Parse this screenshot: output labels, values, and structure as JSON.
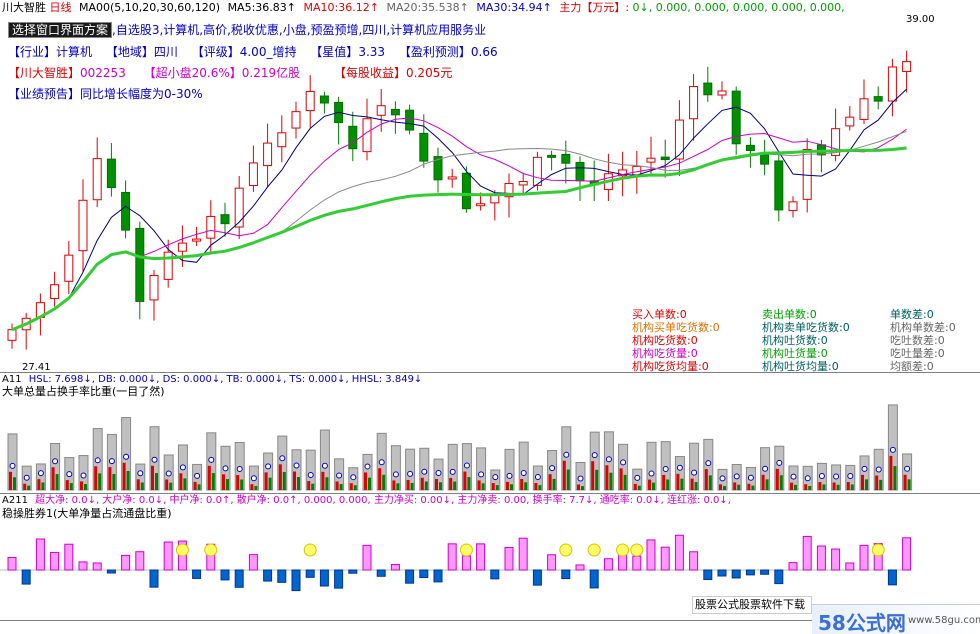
{
  "header": {
    "stock_name": "川大智胜",
    "period": "日线",
    "ma_params": "MA00(5,10,20,30,60,120)",
    "ma5_label": "MA5:",
    "ma5_value": "36.83↑",
    "ma10_label": "MA10:",
    "ma10_value": "36.12↑",
    "ma20_label": "MA20:",
    "ma20_value": "35.538↑",
    "ma30_label": "MA30:",
    "ma30_value": "34.94↑",
    "mainforce_label": "主力【万元】:",
    "mainforce_values": "0↓, 0.000, 0.000, 0.000, 0.000, 0.000,",
    "colors": {
      "ma5": "#000000",
      "ma10": "#e00000",
      "ma20": "#888888",
      "ma30": "#000080"
    }
  },
  "info": {
    "scheme_button": "选择窗口界面方案",
    "line1_rest": ",自选股3,计算机,高价,税收优惠,小盘,预盈预增,四川,计算机应用服务业",
    "industry_tag": "【行业】",
    "industry": "计算机",
    "region_tag": "【地域】",
    "region": "四川",
    "rating_tag": "【评级】",
    "rating": "4.00_增持",
    "star_tag": "【星值】",
    "star": "3.33",
    "profit_tag": "【盈利预测】",
    "profit": "0.66",
    "name_tag": "【川大智胜】",
    "code": "002253",
    "cap_tag": "【超小盘20.6%】",
    "cap": "0.219亿股",
    "eps_tag": "【每股收益】",
    "eps": "0.205元",
    "forecast_tag": "【业绩预告】",
    "forecast": "同比增长幅度为0-30%"
  },
  "price": {
    "high_label": "39.00",
    "low_label": "27.41"
  },
  "stats": {
    "col1": [
      "买入单数:0",
      "机构买单吃货数:0",
      "机构吃货数:0",
      "机构吃货量:0",
      "机构吃货均量:0"
    ],
    "col2": [
      "卖出单数:0",
      "机构卖单吃货数:0",
      "机构吐货数:0",
      "机构吐货量:0",
      "机构吐货均量:0"
    ],
    "col3": [
      "单数差:0",
      "机构单数差:0",
      "吃吐数差:0",
      "吃吐量差:0",
      "均额差:0"
    ]
  },
  "panel2": {
    "name": "A11",
    "params": "HSL: 7.698↓, DB: 0.000↓, DS: 0.000↓, TB: 0.000↓, TS: 0.000↓, HHSL: 3.849↓",
    "title": "大单总量占换手率比重(一目了然)"
  },
  "panel3": {
    "name": "A211",
    "params": "超大净: 0.0↓, 大户净: 0.0↓, 中户净: 0.0↑, 散户净: 0.0↑, 0.000, 0.000, 主力净买: 0.00↓, 主力净卖: 0.00, 换手率: 7.7↓, 通吃率: 0.0↓, 连红涨: 0.0↓,",
    "title": "稳操胜券1(大单净量占流通盘比重)"
  },
  "footer": {
    "watermark": "股票公式股票软件下载",
    "logo": "58公式网",
    "logo_url_text": "www.58gu.com"
  }
}
